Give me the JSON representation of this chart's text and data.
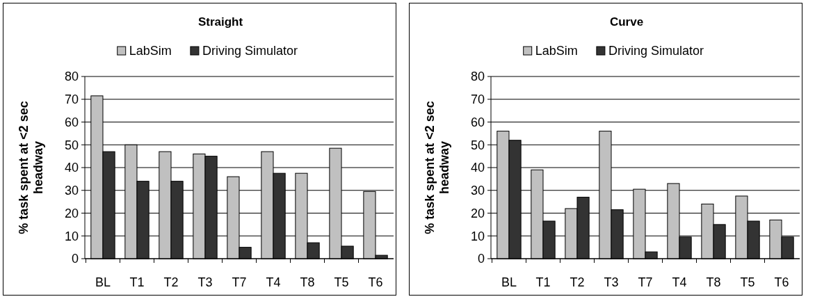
{
  "chart_data": [
    {
      "type": "bar",
      "title": "Straight",
      "ylabel": "% task spent at <2 sec headway",
      "categories": [
        "BL",
        "T1",
        "T2",
        "T3",
        "T7",
        "T4",
        "T8",
        "T5",
        "T6"
      ],
      "series": [
        {
          "name": "LabSim",
          "color": "#c0c0c0",
          "values": [
            71.5,
            50,
            47,
            46,
            36,
            47,
            37.5,
            48.5,
            29.5
          ]
        },
        {
          "name": "Driving Simulator",
          "color": "#333333",
          "values": [
            47,
            34,
            34,
            45,
            5,
            37.5,
            7,
            5.5,
            1.5
          ]
        }
      ],
      "ylim": [
        0,
        80
      ],
      "yticks": [
        0,
        10,
        20,
        30,
        40,
        50,
        60,
        70,
        80
      ],
      "grid": "y",
      "legend": "top"
    },
    {
      "type": "bar",
      "title": "Curve",
      "ylabel": "% task spent at <2 sec headway",
      "categories": [
        "BL",
        "T1",
        "T2",
        "T3",
        "T7",
        "T4",
        "T8",
        "T5",
        "T6"
      ],
      "series": [
        {
          "name": "LabSim",
          "color": "#c0c0c0",
          "values": [
            56,
            39,
            22,
            56,
            30.5,
            33,
            24,
            27.5,
            17
          ]
        },
        {
          "name": "Driving Simulator",
          "color": "#333333",
          "values": [
            52,
            16.5,
            27,
            21.5,
            3,
            9.5,
            15,
            16.5,
            9.5
          ]
        }
      ],
      "ylim": [
        0,
        80
      ],
      "yticks": [
        0,
        10,
        20,
        30,
        40,
        50,
        60,
        70,
        80
      ],
      "grid": "y",
      "legend": "top"
    }
  ]
}
